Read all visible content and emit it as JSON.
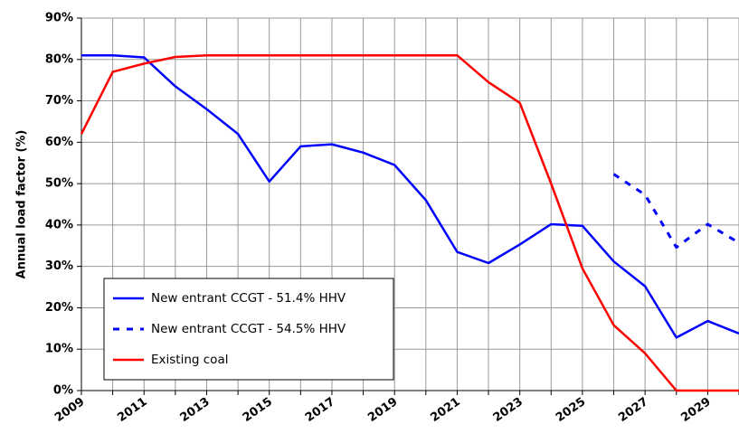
{
  "chart_data": {
    "type": "line",
    "y_label": "Annual load factor (%)",
    "categories": [
      "2009",
      null,
      "2011",
      null,
      "2013",
      null,
      "2015",
      null,
      "2017",
      null,
      "2019",
      null,
      "2021",
      null,
      "2023",
      null,
      "2025",
      null,
      "2027",
      null,
      "2029",
      null
    ],
    "series": [
      {
        "name": "New entrant CCGT - 51.4% HHV",
        "color": "#0000ff",
        "dash": false,
        "values": [
          81,
          81,
          80.5,
          73.5,
          68,
          62,
          50.5,
          59,
          59.5,
          57.5,
          54.5,
          46,
          33.5,
          30.8,
          35.3,
          40.2,
          39.8,
          31.2,
          25.2,
          12.8,
          16.8,
          13.8
        ]
      },
      {
        "name": "New entrant CCGT - 54.5% HHV",
        "color": "#0000ff",
        "dash": true,
        "values": [
          null,
          null,
          null,
          null,
          null,
          null,
          null,
          null,
          null,
          null,
          null,
          null,
          null,
          null,
          null,
          null,
          null,
          52.3,
          47.3,
          34.6,
          40.2,
          35.7
        ]
      },
      {
        "name": "Existing coal",
        "color": "#ff0000",
        "dash": false,
        "values": [
          62,
          77,
          79,
          80.6,
          81,
          81,
          81,
          81,
          81,
          81,
          81,
          81,
          81,
          74.5,
          69.5,
          50,
          29.5,
          15.8,
          9,
          0,
          0,
          0
        ]
      }
    ],
    "ylim": [
      0,
      90
    ],
    "yticks": [
      {
        "value": 0,
        "label": "0%"
      },
      {
        "value": 10,
        "label": "10%"
      },
      {
        "value": 20,
        "label": "20%"
      },
      {
        "value": 30,
        "label": "30%"
      },
      {
        "value": 40,
        "label": "40%"
      },
      {
        "value": 50,
        "label": "50%"
      },
      {
        "value": 60,
        "label": "60%"
      },
      {
        "value": 70,
        "label": "70%"
      },
      {
        "value": 80,
        "label": "80%"
      },
      {
        "value": 90,
        "label": "90%"
      }
    ],
    "grid": true,
    "legend": "lower left"
  }
}
